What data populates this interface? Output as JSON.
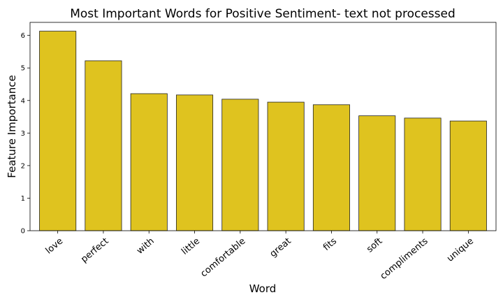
{
  "chart_data": {
    "type": "bar",
    "title": "Most Important Words for Positive Sentiment- text not processed",
    "xlabel": "Word",
    "ylabel": "Feature Importance",
    "categories": [
      "love",
      "perfect",
      "with",
      "little",
      "comfortable",
      "great",
      "fits",
      "soft",
      "compliments",
      "unique"
    ],
    "values": [
      6.13,
      5.22,
      4.21,
      4.17,
      4.04,
      3.95,
      3.87,
      3.53,
      3.46,
      3.37
    ],
    "ylim": [
      0,
      6.4
    ],
    "yticks": [
      0,
      1,
      2,
      3,
      4,
      5,
      6
    ],
    "grid": false,
    "bar_color": "#dfc31f",
    "edge_color": "#222222"
  }
}
